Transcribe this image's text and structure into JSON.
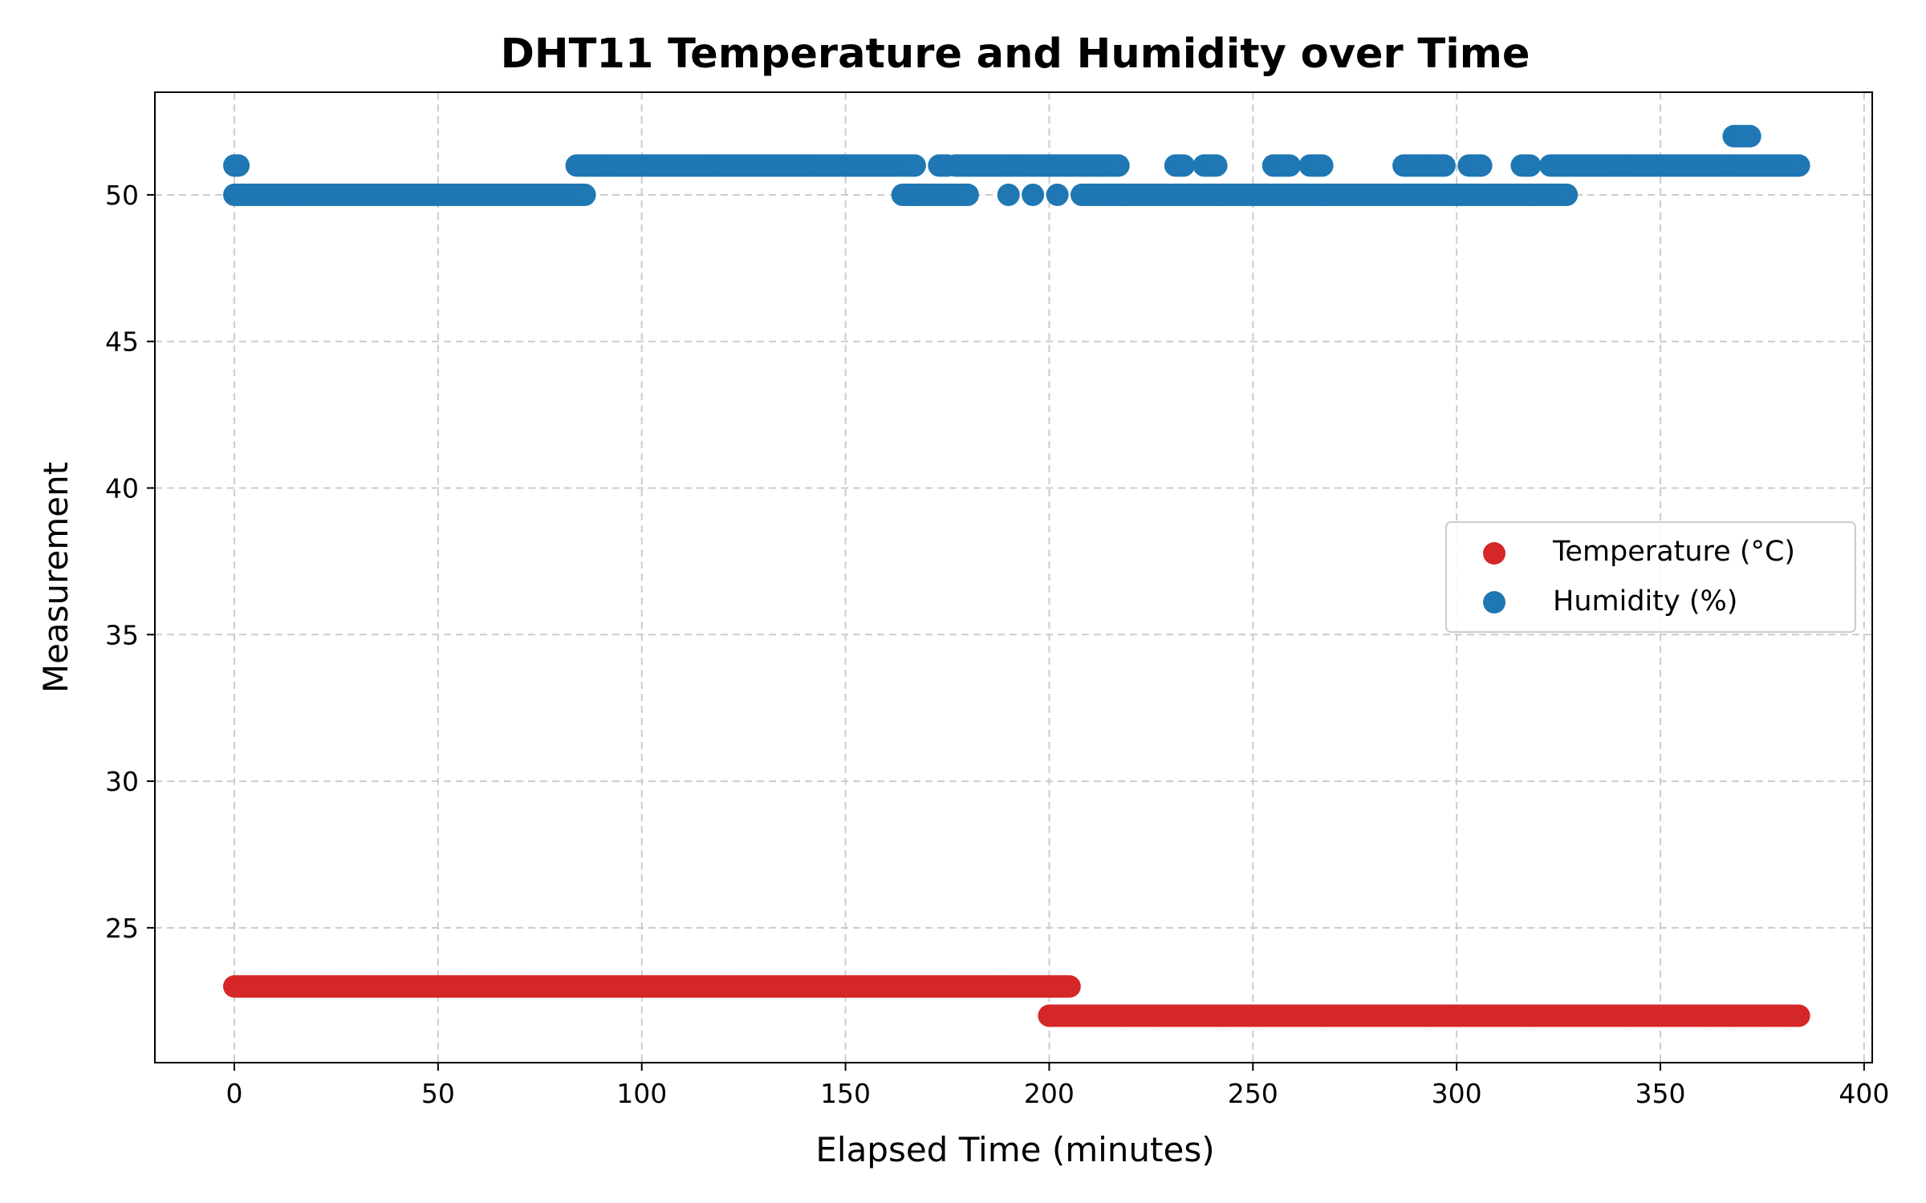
{
  "chart_data": {
    "type": "scatter",
    "title": "DHT11 Temperature and Humidity over Time",
    "xlabel": "Elapsed Time (minutes)",
    "ylabel": "Measurement",
    "xlim": [
      -19.5,
      402
    ],
    "ylim": [
      20.4,
      53.5
    ],
    "xticks": [
      0,
      50,
      100,
      150,
      200,
      250,
      300,
      350,
      400
    ],
    "yticks": [
      25,
      30,
      35,
      40,
      45,
      50
    ],
    "grid": true,
    "legend_position": "center-right",
    "series": [
      {
        "name": "Temperature (°C)",
        "color": "#d62728",
        "segments": [
          {
            "x_start": 0,
            "x_end": 205,
            "y": 23,
            "step": 0.5
          },
          {
            "x_start": 200,
            "x_end": 384,
            "y": 22,
            "step": 0.5
          }
        ]
      },
      {
        "name": "Humidity (%)",
        "color": "#1f77b4",
        "segments": [
          {
            "x_start": 0,
            "x_end": 1,
            "y": 51,
            "step": 0.5
          },
          {
            "x_start": 0,
            "x_end": 86,
            "y": 50,
            "step": 0.5
          },
          {
            "x_start": 84,
            "x_end": 167,
            "y": 51,
            "step": 0.5
          },
          {
            "x_start": 164,
            "x_end": 180,
            "y": 50,
            "step": 0.5
          },
          {
            "x_start": 173,
            "x_end": 175,
            "y": 51,
            "step": 0.5
          },
          {
            "x_start": 177,
            "x_end": 217,
            "y": 51,
            "step": 0.5
          },
          {
            "x_start": 208,
            "x_end": 327,
            "y": 50,
            "step": 0.5
          },
          {
            "x_start": 231,
            "x_end": 233,
            "y": 51,
            "step": 0.5
          },
          {
            "x_start": 238,
            "x_end": 241,
            "y": 51,
            "step": 0.5
          },
          {
            "x_start": 255,
            "x_end": 259,
            "y": 51,
            "step": 0.5
          },
          {
            "x_start": 264,
            "x_end": 267,
            "y": 51,
            "step": 0.5
          },
          {
            "x_start": 287,
            "x_end": 297,
            "y": 51,
            "step": 0.5
          },
          {
            "x_start": 303,
            "x_end": 306,
            "y": 51,
            "step": 0.5
          },
          {
            "x_start": 316,
            "x_end": 318,
            "y": 51,
            "step": 0.5
          },
          {
            "x_start": 323,
            "x_end": 384,
            "y": 51,
            "step": 0.5
          },
          {
            "x_start": 368,
            "x_end": 372,
            "y": 52,
            "step": 0.5
          }
        ],
        "points": [
          {
            "x": 190,
            "y": 50
          },
          {
            "x": 196,
            "y": 50
          },
          {
            "x": 202,
            "y": 50
          }
        ]
      }
    ]
  }
}
